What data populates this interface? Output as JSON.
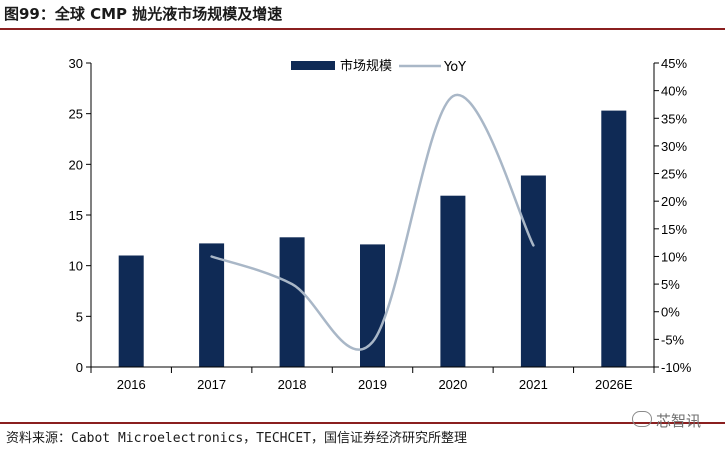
{
  "title": "图99：全球 CMP 抛光液市场规模及增速",
  "source": "资料来源：Cabot Microelectronics，TECHCET，国信证券经济研究所整理",
  "watermark": "芯智讯",
  "colors": {
    "bar": "#0f2a55",
    "line": "#a9b7c7",
    "rule": "#8a1f1f"
  },
  "chart_data": {
    "type": "bar+line",
    "categories": [
      "2016",
      "2017",
      "2018",
      "2019",
      "2020",
      "2021",
      "2026E"
    ],
    "series": [
      {
        "name": "市场规模",
        "type": "bar",
        "axis": "left",
        "values": [
          11.0,
          12.2,
          12.8,
          12.1,
          16.9,
          18.9,
          25.3
        ]
      },
      {
        "name": "YoY",
        "type": "line",
        "axis": "right",
        "values": [
          null,
          0.1,
          0.05,
          -0.055,
          0.39,
          0.12,
          null
        ]
      }
    ],
    "left_axis": {
      "ylim": [
        0,
        30
      ],
      "ticks": [
        "0",
        "5",
        "10",
        "15",
        "20",
        "25",
        "30"
      ]
    },
    "right_axis": {
      "ylim": [
        -0.1,
        0.45
      ],
      "ticks": [
        "-10%",
        "-5%",
        "0%",
        "5%",
        "10%",
        "15%",
        "20%",
        "25%",
        "30%",
        "35%",
        "40%",
        "45%"
      ]
    },
    "legend": "top-center",
    "grid": false
  }
}
